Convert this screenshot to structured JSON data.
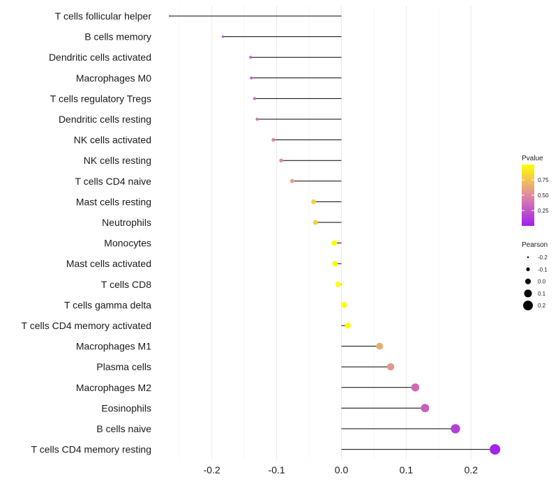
{
  "chart_data": {
    "type": "lollipop",
    "title": "",
    "xlabel": "",
    "ylabel": "",
    "xlim": [
      -0.27,
      0.24
    ],
    "xticks": [
      -0.2,
      -0.1,
      0.0,
      0.1,
      0.2
    ],
    "xtick_labels": [
      "-0.2",
      "-0.1",
      "0.0",
      "0.1",
      "0.2"
    ],
    "grid": true,
    "categories": [
      "T cells follicular helper",
      "B cells memory",
      "Dendritic cells activated",
      "Macrophages M0",
      "T cells regulatory  Tregs ",
      "Dendritic cells resting",
      "NK cells activated",
      "NK cells resting",
      "T cells CD4 naive",
      "Mast cells resting",
      "Neutrophils",
      "Monocytes",
      "Mast cells activated",
      "T cells CD8",
      "T cells gamma delta",
      "T cells CD4 memory activated",
      "Macrophages M1",
      "Plasma cells",
      "Macrophages M2",
      "Eosinophils",
      "B cells naive",
      "T cells CD4 memory resting"
    ],
    "pearson": [
      -0.265,
      -0.183,
      -0.14,
      -0.139,
      -0.134,
      -0.13,
      -0.105,
      -0.093,
      -0.076,
      -0.043,
      -0.04,
      -0.011,
      -0.01,
      -0.005,
      0.004,
      0.01,
      0.059,
      0.076,
      0.114,
      0.129,
      0.176,
      0.237
    ],
    "pvalue": [
      0.01,
      0.08,
      0.3,
      0.3,
      0.35,
      0.4,
      0.45,
      0.5,
      0.6,
      0.8,
      0.8,
      0.99,
      0.99,
      1.0,
      1.0,
      0.99,
      0.65,
      0.55,
      0.35,
      0.3,
      0.15,
      0.02
    ],
    "legend": {
      "color": {
        "title": "Pvalue",
        "ticks": [
          0.25,
          0.5,
          0.75
        ],
        "tick_labels": [
          "0.25",
          "0.50",
          "0.75"
        ],
        "range": [
          0.0,
          1.0
        ],
        "low_color": "#a020f0",
        "mid_color": "#e08aa0",
        "high_color": "#ffff00"
      },
      "size": {
        "title": "Pearson",
        "values": [
          -0.2,
          -0.1,
          0.0,
          0.1,
          0.2
        ],
        "labels": [
          "-0.2",
          "-0.1",
          "0.0",
          "0.1",
          "0.2"
        ]
      }
    },
    "legend_position": "right"
  }
}
